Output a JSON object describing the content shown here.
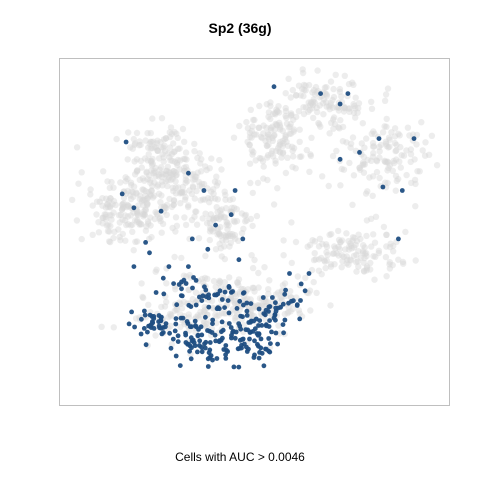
{
  "chart_data": {
    "type": "scatter",
    "title": "Sp2 (36g)",
    "xlabel": "Cells with AUC > 0.0046",
    "ylabel": "",
    "xlim": [
      0,
      100
    ],
    "ylim": [
      0,
      100
    ],
    "grid": false,
    "legend": "none",
    "colors": {
      "background_cells": "#d6d6d6",
      "auc_cells": "#1f4e82",
      "frame": "#bfbfbf"
    },
    "seed": 7,
    "series": [
      {
        "role": "background",
        "count": 1300,
        "clusters": [
          [
            18,
            57,
            11,
            10,
            0.14
          ],
          [
            30,
            65,
            10,
            8,
            0.12
          ],
          [
            42,
            52,
            7,
            8,
            0.08
          ],
          [
            55,
            77,
            7,
            10,
            0.1
          ],
          [
            68,
            88,
            10,
            6,
            0.09
          ],
          [
            82,
            72,
            10,
            9,
            0.1
          ],
          [
            75,
            44,
            13,
            6,
            0.1
          ],
          [
            37,
            28,
            15,
            8,
            0.14
          ],
          [
            52,
            30,
            10,
            7,
            0.08
          ],
          [
            25,
            75,
            6,
            6,
            0.05
          ]
        ]
      },
      {
        "role": "auc",
        "count": 260,
        "clusters": [
          [
            24,
            24,
            5,
            3,
            0.14
          ],
          [
            36,
            20,
            9,
            7,
            0.28
          ],
          [
            50,
            20,
            8,
            7,
            0.28
          ],
          [
            58,
            28,
            5,
            4,
            0.1
          ],
          [
            42,
            32,
            7,
            4,
            0.1
          ],
          [
            30,
            34,
            4,
            3,
            0.05
          ],
          [
            40,
            15,
            7,
            4,
            0.05
          ]
        ],
        "outliers": [
          [
            55,
            92
          ],
          [
            67,
            90
          ],
          [
            72,
            87
          ],
          [
            74,
            90
          ],
          [
            91,
            77
          ],
          [
            82,
            77
          ],
          [
            77,
            73
          ],
          [
            72,
            71
          ],
          [
            83,
            63
          ],
          [
            88,
            62
          ],
          [
            87,
            48
          ],
          [
            63,
            33
          ],
          [
            64,
            38
          ],
          [
            62,
            35
          ],
          [
            59,
            38
          ],
          [
            17,
            76
          ],
          [
            16,
            61
          ],
          [
            19,
            57
          ],
          [
            33,
            67
          ],
          [
            37,
            62
          ],
          [
            45,
            62
          ],
          [
            44,
            55
          ],
          [
            47,
            48
          ],
          [
            22,
            47
          ],
          [
            19,
            40
          ],
          [
            33,
            40
          ],
          [
            28,
            40
          ],
          [
            35,
            36
          ],
          [
            26,
            56
          ],
          [
            40,
            52
          ],
          [
            34,
            48
          ],
          [
            23,
            44
          ],
          [
            38,
            45
          ],
          [
            46,
            42
          ],
          [
            30,
            29
          ],
          [
            61,
            29
          ]
        ]
      }
    ]
  }
}
